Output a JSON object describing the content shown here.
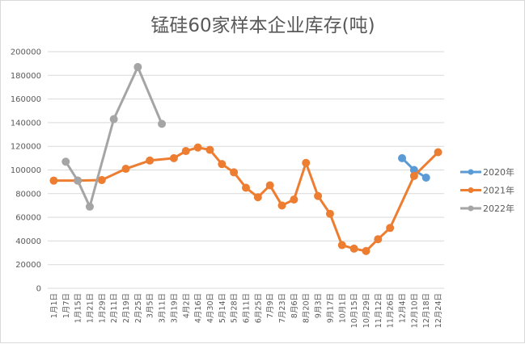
{
  "chart_data": {
    "type": "line",
    "title": "锰硅60家样本企业库存(吨)",
    "xlabel": "",
    "ylabel": "",
    "categories": [
      "1月1日",
      "1月7日",
      "1月15日",
      "1月21日",
      "1月29日",
      "2月11日",
      "2月19日",
      "2月25日",
      "3月5日",
      "3月11日",
      "3月19日",
      "4月2日",
      "4月16日",
      "4月30日",
      "5月14日",
      "5月28日",
      "6月11日",
      "6月25日",
      "7月9日",
      "7月23日",
      "8月6日",
      "8月20日",
      "9月3日",
      "9月17日",
      "10月1日",
      "10月15日",
      "10月29日",
      "11月12日",
      "11月26日",
      "12月4日",
      "12月10日",
      "12月18日",
      "12月24日"
    ],
    "ylim": [
      0,
      200000
    ],
    "yticks": [
      "0",
      "20000",
      "40000",
      "60000",
      "80000",
      "100000",
      "120000",
      "140000",
      "160000",
      "180000",
      "200000"
    ],
    "grid": true,
    "legend_position": "right",
    "series": [
      {
        "name": "2020年",
        "color": "#5b9bd5",
        "points": [
          [
            29,
            110000
          ],
          [
            30,
            100000
          ],
          [
            31,
            93500
          ]
        ]
      },
      {
        "name": "2021年",
        "color": "#ed7d31",
        "points": [
          [
            0,
            91000
          ],
          [
            2,
            91000
          ],
          [
            4,
            91500
          ],
          [
            6,
            101000
          ],
          [
            8,
            108000
          ],
          [
            10,
            110000
          ],
          [
            11,
            116000
          ],
          [
            12,
            119000
          ],
          [
            13,
            117000
          ],
          [
            14,
            105000
          ],
          [
            15,
            98000
          ],
          [
            16,
            85000
          ],
          [
            17,
            77000
          ],
          [
            18,
            87000
          ],
          [
            19,
            70000
          ],
          [
            20,
            75000
          ],
          [
            21,
            106000
          ],
          [
            22,
            78000
          ],
          [
            23,
            63000
          ],
          [
            24,
            36500
          ],
          [
            25,
            33500
          ],
          [
            26,
            31500
          ],
          [
            27,
            41500
          ],
          [
            28,
            51000
          ],
          [
            30,
            95000
          ],
          [
            32,
            115000
          ]
        ]
      },
      {
        "name": "2022年",
        "color": "#a5a5a5",
        "points": [
          [
            1,
            107000
          ],
          [
            2,
            91000
          ],
          [
            3,
            69000
          ],
          [
            5,
            143000
          ],
          [
            7,
            187000
          ],
          [
            9,
            139000
          ]
        ]
      }
    ]
  }
}
